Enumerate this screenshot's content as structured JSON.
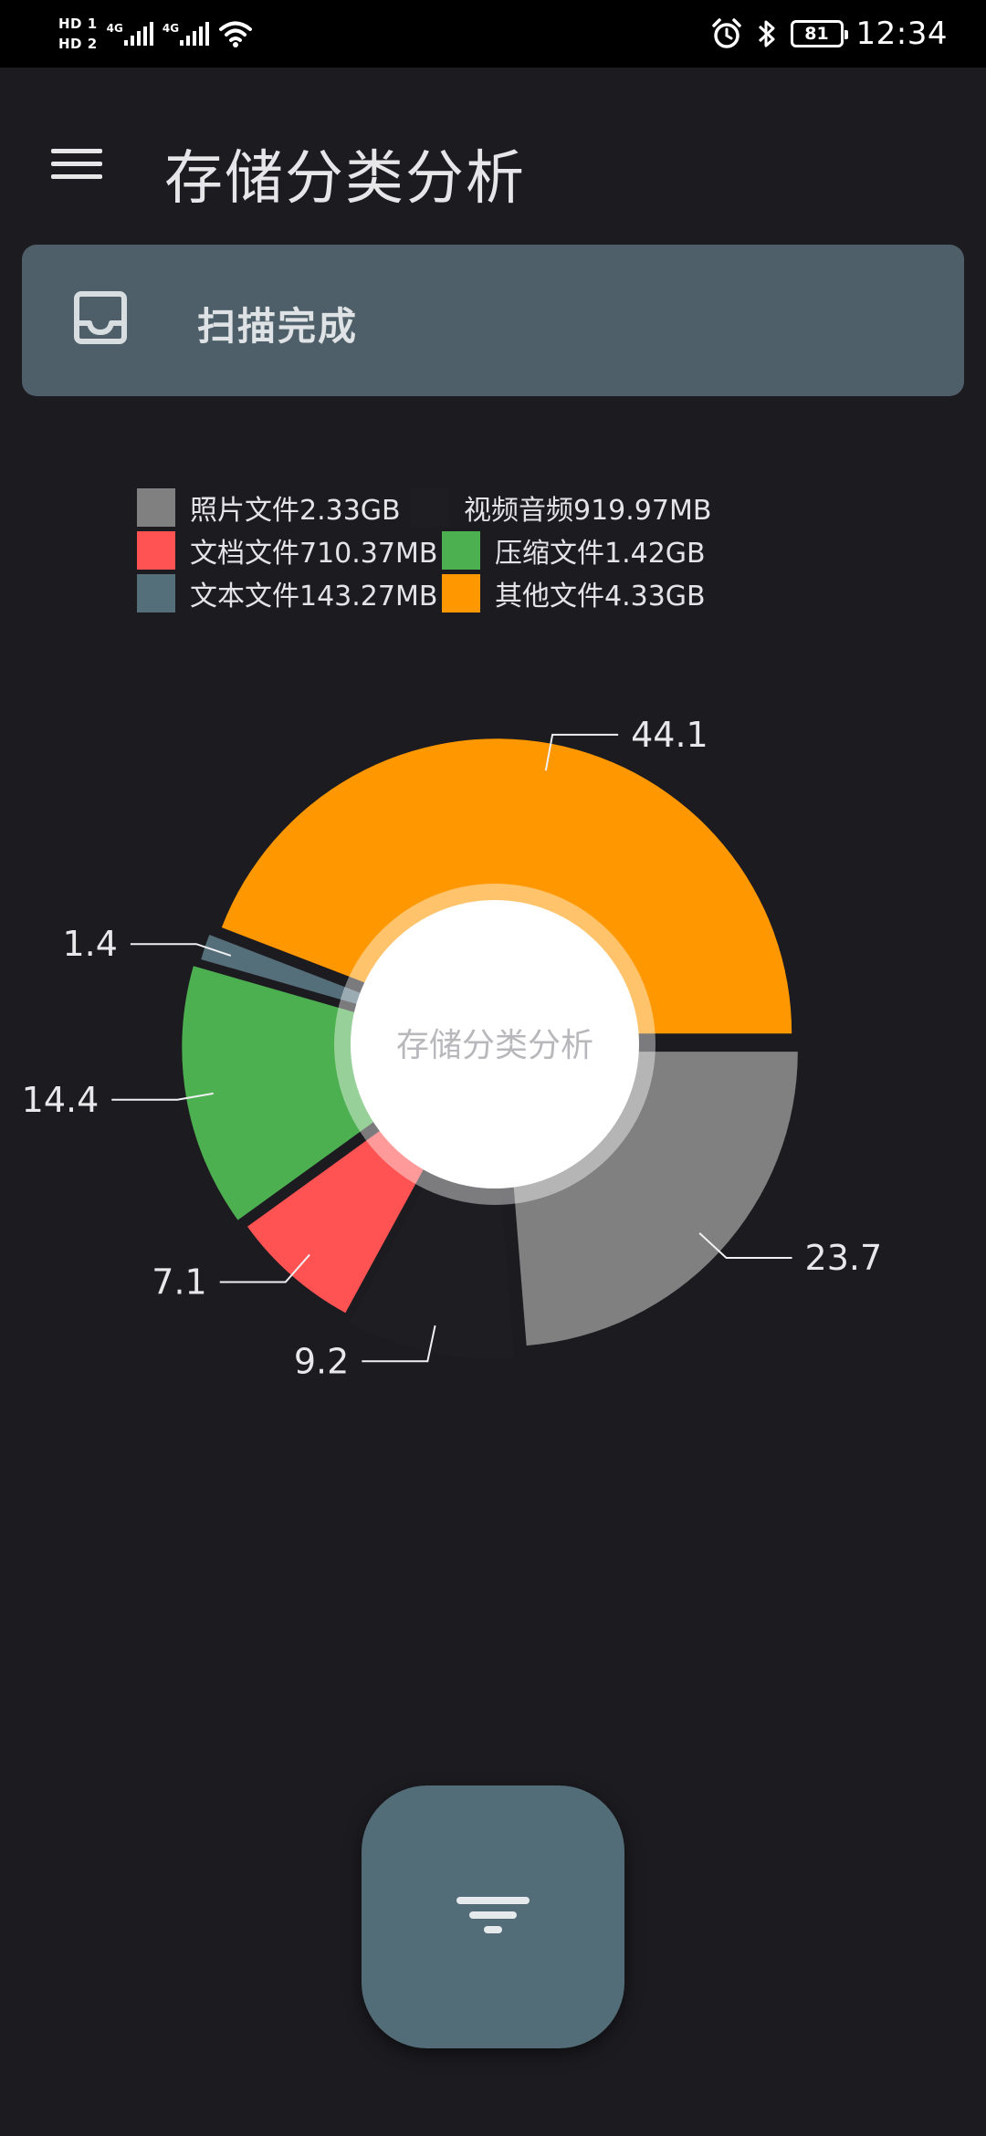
{
  "status_bar": {
    "sim1": "HD 1",
    "sim2": "HD 2",
    "network1": "4G",
    "network2": "4G",
    "battery": "81",
    "time": "12:34"
  },
  "app_bar": {
    "menu_icon": "menu-icon",
    "title": "存储分类分析"
  },
  "scan_card": {
    "icon": "inbox-icon",
    "status": "扫描完成"
  },
  "legend": [
    {
      "label": "照片文件2.33GB",
      "color": "#808080"
    },
    {
      "label": "视频音频919.97MB",
      "color": "#1e1e22"
    },
    {
      "label": "文档文件710.37MB",
      "color": "#ff5252"
    },
    {
      "label": "压缩文件1.42GB",
      "color": "#4caf50"
    },
    {
      "label": "文本文件143.27MB",
      "color": "#546e7a"
    },
    {
      "label": "其他文件4.33GB",
      "color": "#ff9800"
    }
  ],
  "chart_data": {
    "type": "pie",
    "center_text": "存储分类分析",
    "slices": [
      {
        "label": "照片文件2.33GB",
        "value": 23.7,
        "color": "#808080"
      },
      {
        "label": "视频音频919.97MB",
        "value": 9.2,
        "color": "#1e1e22"
      },
      {
        "label": "文档文件710.37MB",
        "value": 7.1,
        "color": "#ff5252"
      },
      {
        "label": "压缩文件1.42GB",
        "value": 14.4,
        "color": "#4caf50"
      },
      {
        "label": "文本文件143.27MB",
        "value": 1.4,
        "color": "#546e7a"
      },
      {
        "label": "其他文件4.33GB",
        "value": 44.1,
        "color": "#ff9800"
      }
    ],
    "value_labels": [
      "23.7",
      "9.2",
      "7.1",
      "14.4",
      "1.4",
      "44.1"
    ]
  },
  "fab": {
    "icon": "filter-icon"
  }
}
